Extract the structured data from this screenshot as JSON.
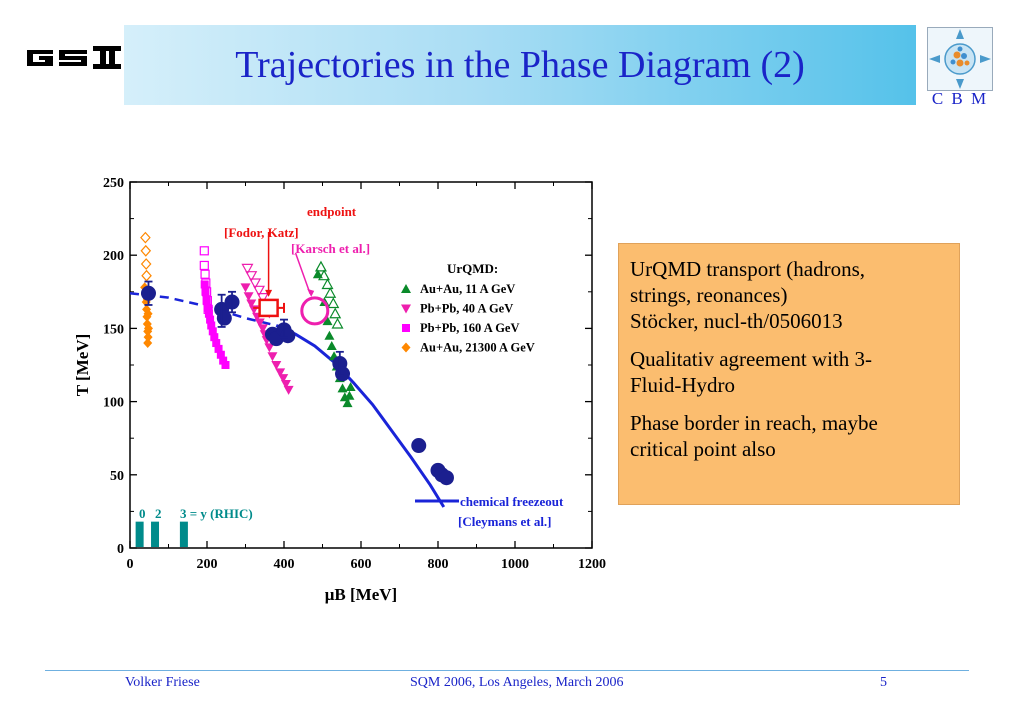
{
  "header": {
    "title": "Trajectories in the Phase Diagram (2)",
    "left_logo": "gsi-logo",
    "right_logo": "cbm-logo",
    "right_logo_text": "C B M"
  },
  "colors": {
    "title": "#1a24c8",
    "freezeout": "#1a24d8",
    "data_points": "#1b1f8f",
    "green": "#0a8a2a",
    "magenta": "#ee1fae",
    "pink": "#ff00ff",
    "orange": "#ff8800",
    "red": "#ee1111",
    "teal": "#008b8b",
    "box_bg": "#fbbd6f"
  },
  "info_box": {
    "paragraphs": [
      [
        "UrQMD transport (hadrons,",
        "strings, reonances)",
        "Stöcker, nucl-th/0506013"
      ],
      [
        "Qualitativ agreement with 3-",
        "Fluid-Hydro"
      ],
      [
        "Phase border in reach, maybe",
        "critical point also"
      ]
    ]
  },
  "footer": {
    "author": "Volker Friese",
    "event": "SQM 2006, Los Angeles, March 2006",
    "page": "5"
  },
  "chart_data": {
    "type": "scatter",
    "xlabel": "μB [MeV]",
    "ylabel": "T [MeV]",
    "xlim": [
      0,
      1200
    ],
    "ylim": [
      0,
      250
    ],
    "xticks": [
      0,
      200,
      400,
      600,
      800,
      1000,
      1200
    ],
    "yticks": [
      0,
      50,
      100,
      150,
      200,
      250
    ],
    "grid": false,
    "legend_title": "UrQMD:",
    "legend_position": "top-right",
    "series": [
      {
        "name": "Au+Au, 11 A GeV",
        "marker": "triangle-up",
        "color": "#0a8a2a",
        "points": [
          [
            488,
            187
          ],
          [
            505,
            168
          ],
          [
            513,
            155
          ],
          [
            518,
            145
          ],
          [
            524,
            138
          ],
          [
            530,
            131
          ],
          [
            537,
            124
          ],
          [
            545,
            116
          ],
          [
            552,
            109
          ],
          [
            558,
            103
          ],
          [
            565,
            99
          ],
          [
            570,
            104
          ],
          [
            573,
            110
          ]
        ]
      },
      {
        "name": "Pb+Pb, 40 A GeV",
        "marker": "triangle-down",
        "color": "#ee1fae",
        "points": [
          [
            300,
            178
          ],
          [
            308,
            172
          ],
          [
            315,
            167
          ],
          [
            322,
            163
          ],
          [
            330,
            158
          ],
          [
            337,
            154
          ],
          [
            345,
            150
          ],
          [
            350,
            146
          ],
          [
            355,
            142
          ],
          [
            362,
            137
          ],
          [
            370,
            131
          ],
          [
            380,
            125
          ],
          [
            390,
            120
          ],
          [
            398,
            116
          ],
          [
            405,
            112
          ],
          [
            412,
            108
          ]
        ]
      },
      {
        "name": "Pb+Pb, 160 A GeV",
        "marker": "square",
        "color": "#ff00ff",
        "points": [
          [
            194,
            180
          ],
          [
            196,
            175
          ],
          [
            199,
            169
          ],
          [
            202,
            164
          ],
          [
            205,
            160
          ],
          [
            208,
            156
          ],
          [
            211,
            152
          ],
          [
            215,
            148
          ],
          [
            219,
            144
          ],
          [
            224,
            140
          ],
          [
            230,
            136
          ],
          [
            236,
            132
          ],
          [
            242,
            128
          ],
          [
            248,
            125
          ]
        ]
      },
      {
        "name": "Au+Au, 21300 A GeV",
        "marker": "diamond",
        "color": "#ff8800",
        "points": [
          [
            38,
            178
          ],
          [
            40,
            173
          ],
          [
            42,
            168
          ],
          [
            43,
            163
          ],
          [
            44,
            158
          ],
          [
            45,
            153
          ],
          [
            46,
            148
          ],
          [
            47,
            144
          ],
          [
            46,
            140
          ],
          [
            45,
            170
          ],
          [
            47,
            160
          ],
          [
            48,
            150
          ]
        ]
      },
      {
        "name": "",
        "marker": "triangle-up-open",
        "color": "#0a8a2a",
        "points": [
          [
            496,
            192
          ],
          [
            504,
            186
          ],
          [
            513,
            180
          ],
          [
            520,
            174
          ],
          [
            528,
            167
          ],
          [
            533,
            160
          ],
          [
            539,
            153
          ]
        ]
      },
      {
        "name": "",
        "marker": "triangle-down-open",
        "color": "#ee1fae",
        "points": [
          [
            305,
            191
          ],
          [
            315,
            186
          ],
          [
            325,
            181
          ],
          [
            335,
            176
          ],
          [
            345,
            171
          ],
          [
            353,
            166
          ],
          [
            362,
            161
          ]
        ]
      },
      {
        "name": "",
        "marker": "square-open",
        "color": "#ff00ff",
        "points": [
          [
            193,
            203
          ],
          [
            193,
            193
          ],
          [
            195,
            187
          ],
          [
            197,
            181
          ],
          [
            199,
            175
          ],
          [
            201,
            169
          ],
          [
            203,
            163
          ]
        ]
      },
      {
        "name": "",
        "marker": "diamond-open",
        "color": "#ff8800",
        "points": [
          [
            40,
            212
          ],
          [
            41,
            203
          ],
          [
            42,
            194
          ],
          [
            43,
            186
          ]
        ]
      },
      {
        "name": "",
        "marker": "circle",
        "color": "#1b1f8f",
        "points": [
          [
            48,
            174
          ],
          [
            238,
            163
          ],
          [
            245,
            157
          ],
          [
            265,
            168
          ],
          [
            370,
            146
          ],
          [
            380,
            143
          ],
          [
            400,
            149
          ],
          [
            410,
            145
          ],
          [
            545,
            126
          ],
          [
            552,
            119
          ],
          [
            750,
            70
          ],
          [
            800,
            53
          ],
          [
            810,
            50
          ],
          [
            822,
            48
          ]
        ]
      }
    ],
    "error_bars": [
      [
        48,
        174,
        8
      ],
      [
        238,
        162,
        11
      ],
      [
        265,
        168,
        7
      ],
      [
        400,
        150,
        6
      ],
      [
        545,
        126,
        8
      ]
    ],
    "curve": {
      "name": "chemical freezeout",
      "style": "solid",
      "points": [
        [
          380,
          152
        ],
        [
          430,
          146
        ],
        [
          480,
          138
        ],
        [
          530,
          127
        ],
        [
          580,
          113
        ],
        [
          630,
          98
        ],
        [
          680,
          80
        ],
        [
          730,
          62
        ],
        [
          780,
          43
        ],
        [
          815,
          28
        ]
      ]
    },
    "curve_dashed": {
      "points": [
        [
          0,
          174
        ],
        [
          100,
          171
        ],
        [
          200,
          165
        ],
        [
          300,
          157
        ],
        [
          380,
          152
        ]
      ]
    },
    "endpoint_lattice": {
      "label": "[Fodor, Katz]",
      "x": 360,
      "y": 164,
      "xerr": 40
    },
    "endpoint_karsch": {
      "label": "[Karsch et al.]",
      "x": 480,
      "y": 162
    },
    "rhic_bars": {
      "positions": [
        25,
        65,
        140
      ],
      "height": 18,
      "labels": [
        "0",
        "2",
        "3 = y  (RHIC)"
      ]
    },
    "annotations": {
      "endpoint": "endpoint",
      "fodor": "[Fodor, Katz]",
      "karsch": "[Karsch et al.]",
      "freezeout_label": "chemical freezeout",
      "cleymans": "[Cleymans et al.]",
      "rhic_0": "0",
      "rhic_2": "2",
      "rhic_3": "3 = y  (RHIC)"
    }
  }
}
